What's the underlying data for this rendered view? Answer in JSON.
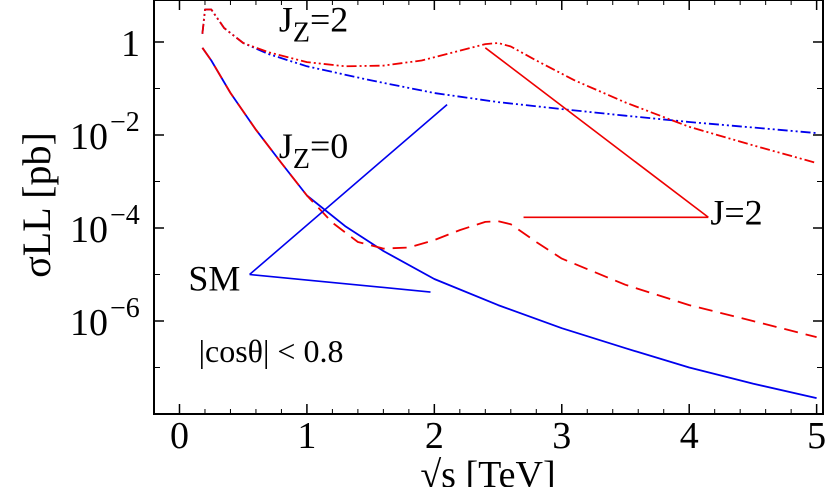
{
  "chart_data": {
    "type": "line",
    "title": "",
    "xlabel": "√s  [TeV]",
    "ylabel": "σLL  [pb]",
    "x_scale": "linear",
    "y_scale": "log",
    "xlim": [
      -0.2,
      5.05
    ],
    "ylim": [
      1e-08,
      8
    ],
    "x_ticks": [
      {
        "value": 0,
        "label": "0"
      },
      {
        "value": 1,
        "label": "1"
      },
      {
        "value": 2,
        "label": "2"
      },
      {
        "value": 3,
        "label": "3"
      },
      {
        "value": 4,
        "label": "4"
      },
      {
        "value": 5,
        "label": "5"
      }
    ],
    "y_ticks": [
      {
        "value": 1,
        "base": "1",
        "exp": ""
      },
      {
        "value": 0.01,
        "base": "10",
        "exp": "−2"
      },
      {
        "value": 0.0001,
        "base": "10",
        "exp": "−4"
      },
      {
        "value": 1e-06,
        "base": "10",
        "exp": "−6"
      }
    ],
    "grid": false,
    "series": [
      {
        "key": "sm_jz2",
        "color": "#0000ee",
        "dash": "10,3,2,3,2,3",
        "x": [
          0.18,
          0.2,
          0.25,
          0.35,
          0.5,
          0.7,
          1.0,
          1.5,
          2.0,
          2.5,
          3.0,
          3.5,
          4.0,
          4.5,
          5.0
        ],
        "y": [
          1.5,
          5.0,
          5.0,
          2.0,
          0.95,
          0.55,
          0.3,
          0.15,
          0.08,
          0.051,
          0.036,
          0.026,
          0.019,
          0.0145,
          0.011
        ]
      },
      {
        "key": "j2_jz2",
        "color": "#ee0000",
        "dash": "10,3,2,3,2,3",
        "x": [
          0.18,
          0.2,
          0.25,
          0.35,
          0.5,
          0.7,
          1.0,
          1.3,
          1.6,
          1.9,
          2.2,
          2.4,
          2.5,
          2.6,
          2.8,
          3.1,
          3.5,
          4.0,
          4.5,
          5.0
        ],
        "y": [
          1.5,
          5.0,
          5.0,
          2.0,
          0.95,
          0.6,
          0.37,
          0.3,
          0.31,
          0.4,
          0.65,
          0.9,
          0.95,
          0.8,
          0.4,
          0.15,
          0.05,
          0.015,
          0.006,
          0.0025
        ]
      },
      {
        "key": "sm_jz0",
        "color": "#0000ee",
        "dash": "",
        "x": [
          0.18,
          0.25,
          0.4,
          0.6,
          0.8,
          1.0,
          1.3,
          1.6,
          2.0,
          2.5,
          3.0,
          3.5,
          4.0,
          4.5,
          5.0
        ],
        "y": [
          0.75,
          0.4,
          0.08,
          0.013,
          0.0025,
          0.0005,
          0.00011,
          3.2e-05,
          8e-06,
          2.2e-06,
          7e-07,
          2.6e-07,
          1e-07,
          4.5e-08,
          2.2e-08
        ]
      },
      {
        "key": "j2_jz0",
        "color": "#ee0000",
        "dash": "14,8",
        "x": [
          0.18,
          0.25,
          0.4,
          0.6,
          0.8,
          1.0,
          1.2,
          1.4,
          1.6,
          1.8,
          2.0,
          2.2,
          2.4,
          2.5,
          2.6,
          2.8,
          3.0,
          3.5,
          4.0,
          4.5,
          5.0
        ],
        "y": [
          0.75,
          0.4,
          0.08,
          0.013,
          0.0025,
          0.0005,
          0.00013,
          5e-05,
          3.6e-05,
          3.8e-05,
          5.5e-05,
          9e-05,
          0.000135,
          0.00014,
          0.00012,
          5e-05,
          2.2e-05,
          6e-06,
          2.2e-06,
          1e-06,
          4.5e-07
        ]
      }
    ],
    "label_lines": [
      {
        "key": "sm_to_jz2",
        "color": "#0000ee",
        "x1": 0.55,
        "y1": 1e-05,
        "x2": 2.1,
        "y2": 0.045
      },
      {
        "key": "sm_to_jz0",
        "color": "#0000ee",
        "x1": 0.55,
        "y1": 1e-05,
        "x2": 1.97,
        "y2": 4.2e-06
      },
      {
        "key": "j2_to_jz2",
        "color": "#ee0000",
        "x1": 4.15,
        "y1": 0.00017,
        "x2": 2.4,
        "y2": 0.75
      },
      {
        "key": "j2_to_jz0",
        "color": "#ee0000",
        "x1": 4.15,
        "y1": 0.00017,
        "x2": 2.7,
        "y2": 0.00017
      }
    ],
    "annotations": {
      "jz2": {
        "text": "J",
        "sub": "Z",
        "rest": "=2",
        "x": 0.78,
        "y": 1.7
      },
      "jz0": {
        "text": "J",
        "sub": "Z",
        "rest": "=0",
        "x": 0.78,
        "y": 0.0032
      },
      "sm": {
        "text": "SM",
        "x": 0.07,
        "y": 4.5e-06
      },
      "j2": {
        "text": "J=2",
        "x": 4.15,
        "y": 0.00012
      },
      "cut": {
        "text": "|cosθ| < 0.8",
        "x": 0.15,
        "y": 1.3e-07
      }
    }
  }
}
